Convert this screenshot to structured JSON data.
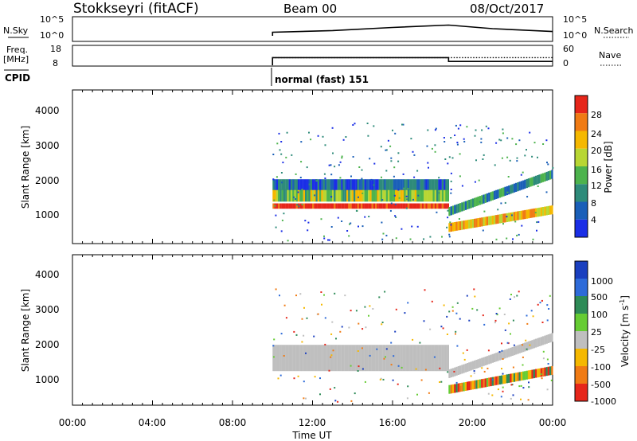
{
  "header": {
    "station": "Stokkseyri (fitACF)",
    "beam": "Beam 00",
    "date": "08/Oct/2017"
  },
  "colors": {
    "low_power": "#1a2ee6",
    "high_power": "#e6261a",
    "ground_scatter": "#bfbfbf"
  },
  "chart_data": [
    {
      "type": "line",
      "panel": "noise",
      "left_label": "N.Sky",
      "right_label": "N.Search",
      "left_ticks": [
        "10^5",
        "10^0"
      ],
      "right_ticks": [
        "10^5",
        "10^0"
      ],
      "x_hours": [
        0,
        10,
        10,
        13,
        16,
        18.8,
        21,
        24
      ],
      "y_log": [
        null,
        0.2,
        0.35,
        0.42,
        0.55,
        0.65,
        0.5,
        0.38
      ]
    },
    {
      "type": "line",
      "panel": "frequency",
      "left_label_line1": "Freq.",
      "left_label_line2": "[MHz]",
      "right_label": "Nave",
      "left_ticks": [
        "18",
        "8"
      ],
      "right_ticks": [
        "60",
        "0"
      ],
      "freq_segments": [
        {
          "from": 10,
          "to": 18.8,
          "value": 12
        },
        {
          "from": 18.8,
          "to": 24,
          "value": 10
        }
      ],
      "nave_segments": [
        {
          "from": 10,
          "to": 18.8,
          "value": 24
        },
        {
          "from": 18.8,
          "to": 24,
          "value": 24
        }
      ]
    },
    {
      "type": "table",
      "panel": "cpid",
      "label": "CPID",
      "program": "normal (fast) 151",
      "start_hour": 10
    },
    {
      "type": "heatmap",
      "panel": "power",
      "ylabel": "Slant Range [km]",
      "xlabel": "",
      "ylim": [
        200,
        4500
      ],
      "xlim": [
        0,
        24
      ],
      "yticks": [
        "1000",
        "2000",
        "3000",
        "4000"
      ],
      "colorbar_label": "Power [dB]",
      "colorbar_ticks": [
        "28",
        "24",
        "20",
        "16",
        "12",
        "8",
        "4"
      ],
      "colorbar_colors": [
        "#e6261a",
        "#f07b14",
        "#f5b800",
        "#b8d633",
        "#4db34d",
        "#2e8b7a",
        "#1a5fb8",
        "#1a2ee6"
      ],
      "bands": [
        {
          "from": 10,
          "to": 18.8,
          "center": 1250,
          "width": 150,
          "level": 0.95
        },
        {
          "from": 10,
          "to": 18.8,
          "center": 1550,
          "width": 350,
          "level": 0.5
        },
        {
          "from": 10,
          "to": 18.8,
          "center": 1850,
          "width": 300,
          "level": 0.2
        },
        {
          "from": 18.8,
          "to": 24,
          "center_start": 650,
          "center_end": 1150,
          "width": 250,
          "level": 0.7
        },
        {
          "from": 18.8,
          "to": 24,
          "center_start": 1100,
          "center_end": 2150,
          "width": 250,
          "level": 0.3
        }
      ]
    },
    {
      "type": "heatmap",
      "panel": "velocity",
      "ylabel": "Slant Range [km]",
      "xlabel": "Time UT",
      "ylim": [
        200,
        4500
      ],
      "xlim": [
        0,
        24
      ],
      "yticks": [
        "1000",
        "2000",
        "3000",
        "4000"
      ],
      "xticks": [
        "00:00",
        "04:00",
        "08:00",
        "12:00",
        "16:00",
        "20:00",
        "00:00"
      ],
      "colorbar_label": "Velocity [m s",
      "colorbar_unit_sup": "-1",
      "colorbar_ticks": [
        "1000",
        "500",
        "100",
        "25",
        "-25",
        "-100",
        "-500",
        "-1000"
      ],
      "colorbar_colors": [
        "#1a3fbf",
        "#2e6bd9",
        "#2e8b57",
        "#66cc33",
        "#bfbfbf",
        "#f5b800",
        "#f07b14",
        "#e6261a"
      ],
      "bands": [
        {
          "from": 10,
          "to": 18.8,
          "center": 1550,
          "width": 750,
          "level": "ground"
        },
        {
          "from": 18.8,
          "to": 24,
          "center_start": 650,
          "center_end": 1200,
          "width": 250,
          "level": "mixed"
        },
        {
          "from": 18.8,
          "to": 24,
          "center_start": 1100,
          "center_end": 2150,
          "width": 250,
          "level": "ground"
        }
      ]
    }
  ]
}
